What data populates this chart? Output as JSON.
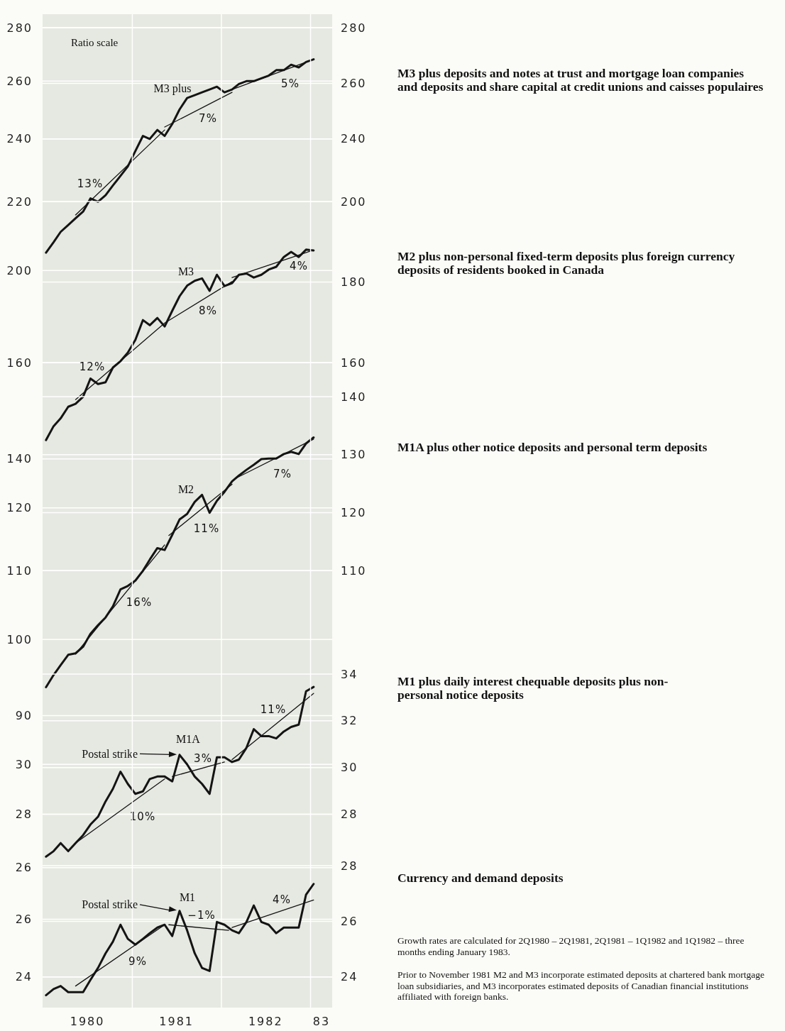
{
  "chart_data": [
    {
      "type": "line",
      "log": true,
      "grid": true,
      "tick_labels": "y",
      "x": [
        "1980-01-15",
        "1980-02-15",
        "1980-03-15",
        "1980-04-15",
        "1980-05-15",
        "1980-06-15",
        "1980-07-15",
        "1980-08-15",
        "1980-09-15",
        "1980-10-15",
        "1980-11-15",
        "1980-12-15",
        "1981-01-15",
        "1981-02-15",
        "1981-03-15",
        "1981-04-15",
        "1981-05-15",
        "1981-06-15",
        "1981-07-15",
        "1981-08-15",
        "1981-09-15",
        "1981-10-15",
        "1981-11-15",
        "1981-12-15",
        "1982-01-15",
        "1982-02-15",
        "1982-03-15",
        "1982-04-15",
        "1982-05-15",
        "1982-06-15",
        "1982-07-15",
        "1982-08-15",
        "1982-09-15",
        "1982-10-15",
        "1982-11-15",
        "1982-12-15",
        "1983-01-15"
      ],
      "xlim": [
        "1980-01-01",
        "1983-04-01"
      ],
      "ylim": [
        200,
        280
      ],
      "yticks": [
        200,
        220,
        240,
        260,
        280
      ],
      "y2lim": [
        240,
        280
      ],
      "y2ticks": [
        240,
        260,
        280
      ],
      "series": [
        {
          "color": "#141414",
          "values": [
            205,
            208,
            211,
            213,
            215,
            217,
            221,
            220,
            222,
            225,
            228,
            231,
            236,
            241,
            240,
            243,
            241,
            245,
            250,
            254,
            255,
            256,
            257,
            258,
            256,
            257,
            259,
            260,
            260,
            261,
            262,
            264,
            264,
            266,
            265,
            267,
            268
          ]
        },
        {
          "type": "line",
          "color": "#141414",
          "x": [
            "1980-05-15",
            "1981-05-15"
          ],
          "values": [
            216,
            243
          ]
        },
        {
          "type": "line",
          "color": "#141414",
          "x": [
            "1981-05-15",
            "1982-02-15"
          ],
          "values": [
            244,
            256
          ]
        },
        {
          "type": "line",
          "color": "#141414",
          "x": [
            "1982-02-15",
            "1983-01-15"
          ],
          "values": [
            257,
            268
          ]
        }
      ],
      "annotations": [
        "Ratio scale",
        "M3 plus deposits and notes at trust and mortgage loan companies and deposits and share capital at credit unions and caisses populaires",
        "M3 plus",
        "13%",
        "7%",
        "5%"
      ]
    },
    {
      "type": "line",
      "log": true,
      "grid": true,
      "tick_labels": "y",
      "x": [
        "1980-01-15",
        "1980-02-15",
        "1980-03-15",
        "1980-04-15",
        "1980-05-15",
        "1980-06-15",
        "1980-07-15",
        "1980-08-15",
        "1980-09-15",
        "1980-10-15",
        "1980-11-15",
        "1980-12-15",
        "1981-01-15",
        "1981-02-15",
        "1981-03-15",
        "1981-04-15",
        "1981-05-15",
        "1981-06-15",
        "1981-07-15",
        "1981-08-15",
        "1981-09-15",
        "1981-10-15",
        "1981-11-15",
        "1981-12-15",
        "1982-01-15",
        "1982-02-15",
        "1982-03-15",
        "1982-04-15",
        "1982-05-15",
        "1982-06-15",
        "1982-07-15",
        "1982-08-15",
        "1982-09-15",
        "1982-10-15",
        "1982-11-15",
        "1982-12-15",
        "1983-01-15"
      ],
      "xlim": [
        "1980-01-01",
        "1983-04-01"
      ],
      "ylim": [
        140,
        200
      ],
      "yticks": [
        140,
        160
      ],
      "y2lim": [
        160,
        200
      ],
      "y2ticks": [
        160,
        180,
        200
      ],
      "series": [
        {
          "color": "#141414",
          "values": [
            143.7,
            146.5,
            148.1,
            150.5,
            151.1,
            152.6,
            156.5,
            155.3,
            155.7,
            158.9,
            160.3,
            162.2,
            165.1,
            169.7,
            168.5,
            170.2,
            168.2,
            171.9,
            175.4,
            178.0,
            179.2,
            179.8,
            176.7,
            180.7,
            177.9,
            178.6,
            180.7,
            181.0,
            180.0,
            180.7,
            182.0,
            182.7,
            185.2,
            186.5,
            185.2,
            187.1,
            186.9
          ]
        },
        {
          "type": "line",
          "color": "#141414",
          "x": [
            "1980-05-15",
            "1981-05-15",
            "1982-02-15"
          ],
          "values": [
            152,
            169,
            179
          ]
        },
        {
          "type": "line",
          "color": "#141414",
          "x": [
            "1982-02-15",
            "1983-01-15"
          ],
          "values": [
            180,
            187
          ]
        }
      ],
      "annotations": [
        "M2 plus non-personal fixed-term deposits plus foreign currency deposits of residents booked in Canada",
        "M3",
        "12%",
        "8%",
        "4%"
      ]
    },
    {
      "type": "line",
      "log": true,
      "grid": true,
      "tick_labels": "y",
      "x": [
        "1980-01-15",
        "1980-02-15",
        "1980-03-15",
        "1980-04-15",
        "1980-05-15",
        "1980-06-15",
        "1980-07-15",
        "1980-08-15",
        "1980-09-15",
        "1980-10-15",
        "1980-11-15",
        "1980-12-15",
        "1981-01-15",
        "1981-02-15",
        "1981-03-15",
        "1981-04-15",
        "1981-05-15",
        "1981-06-15",
        "1981-07-15",
        "1981-08-15",
        "1981-09-15",
        "1981-10-15",
        "1981-11-15",
        "1981-12-15",
        "1982-01-15",
        "1982-02-15",
        "1982-03-15",
        "1982-04-15",
        "1982-05-15",
        "1982-06-15",
        "1982-07-15",
        "1982-08-15",
        "1982-09-15",
        "1982-10-15",
        "1982-11-15",
        "1982-12-15",
        "1983-01-15"
      ],
      "xlim": [
        "1980-01-01",
        "1983-04-01"
      ],
      "ylim": [
        90,
        140
      ],
      "yticks": [
        90,
        100,
        110,
        120
      ],
      "y2lim": [
        110,
        140
      ],
      "y2ticks": [
        110,
        120,
        130,
        140
      ],
      "series": [
        {
          "color": "#141414",
          "values": [
            93.6,
            95.2,
            96.5,
            97.9,
            98.1,
            99.0,
            100.8,
            102.0,
            103.1,
            104.7,
            107.2,
            107.7,
            108.5,
            110.0,
            111.7,
            113.5,
            113.2,
            115.6,
            118.1,
            119.0,
            121.0,
            122.2,
            119.2,
            121.2,
            122.7,
            124.5,
            125.5,
            126.5,
            127.4,
            128.4,
            128.5,
            128.5,
            129.3,
            129.7,
            129.3,
            131.2,
            132.3
          ]
        },
        {
          "type": "line",
          "color": "#141414",
          "x": [
            "1980-05-15",
            "1981-05-15"
          ],
          "values": [
            98,
            114
          ]
        },
        {
          "type": "line",
          "color": "#141414",
          "x": [
            "1981-06-01",
            "1982-02-15"
          ],
          "values": [
            115.5,
            124
          ]
        },
        {
          "type": "line",
          "color": "#141414",
          "x": [
            "1982-03-01",
            "1983-01-15"
          ],
          "values": [
            125,
            132
          ]
        }
      ],
      "annotations": [
        "M1A plus other notice deposits and personal term deposits",
        "M2",
        "16%",
        "11%",
        "7%"
      ]
    },
    {
      "type": "line",
      "log": true,
      "grid": true,
      "tick_labels": "y",
      "x": [
        "1980-01-15",
        "1980-02-15",
        "1980-03-15",
        "1980-04-15",
        "1980-05-15",
        "1980-06-15",
        "1980-07-15",
        "1980-08-15",
        "1980-09-15",
        "1980-10-15",
        "1980-11-15",
        "1980-12-15",
        "1981-01-15",
        "1981-02-15",
        "1981-03-15",
        "1981-04-15",
        "1981-05-15",
        "1981-06-15",
        "1981-07-15",
        "1981-08-15",
        "1981-09-15",
        "1981-10-15",
        "1981-11-15",
        "1981-12-15",
        "1982-01-15",
        "1982-02-15",
        "1982-03-15",
        "1982-04-15",
        "1982-05-15",
        "1982-06-15",
        "1982-07-15",
        "1982-08-15",
        "1982-09-15",
        "1982-10-15",
        "1982-11-15",
        "1982-12-15",
        "1983-01-15"
      ],
      "xlim": [
        "1980-01-01",
        "1983-04-01"
      ],
      "ylim": [
        26,
        34
      ],
      "yticks": [
        26,
        28,
        30
      ],
      "y2lim": [
        28,
        34
      ],
      "y2ticks": [
        28,
        30,
        32,
        34
      ],
      "series": [
        {
          "color": "#141414",
          "values": [
            26.4,
            26.6,
            26.9,
            26.6,
            26.9,
            27.2,
            27.6,
            27.9,
            28.5,
            29.0,
            29.7,
            29.2,
            28.8,
            28.9,
            29.4,
            29.5,
            29.5,
            29.3,
            30.4,
            30.0,
            29.5,
            29.2,
            28.8,
            30.3,
            30.3,
            30.1,
            30.2,
            30.7,
            31.5,
            31.2,
            31.2,
            31.1,
            31.4,
            31.6,
            31.7,
            33.2,
            33.4
          ]
        },
        {
          "type": "line",
          "color": "#141414",
          "x": [
            "1980-05-15",
            "1981-05-15"
          ],
          "values": [
            26.9,
            29.4
          ]
        },
        {
          "type": "line",
          "color": "#141414",
          "x": [
            "1981-06-15",
            "1982-01-15"
          ],
          "values": [
            29.5,
            30.1
          ]
        },
        {
          "type": "line",
          "color": "#141414",
          "x": [
            "1982-02-15",
            "1983-01-15"
          ],
          "values": [
            30.2,
            33.1
          ]
        }
      ],
      "annotations": [
        "M1 plus daily interest chequable deposits plus non-personal notice deposits",
        "M1A",
        "10%",
        "3%",
        "11%",
        "Postal strike"
      ]
    },
    {
      "type": "line",
      "log": true,
      "grid": true,
      "x": [
        "1980-01-15",
        "1980-02-15",
        "1980-03-15",
        "1980-04-15",
        "1980-05-15",
        "1980-06-15",
        "1980-07-15",
        "1980-08-15",
        "1980-09-15",
        "1980-10-15",
        "1980-11-15",
        "1980-12-15",
        "1981-01-15",
        "1981-02-15",
        "1981-03-15",
        "1981-04-15",
        "1981-05-15",
        "1981-06-15",
        "1981-07-15",
        "1981-08-15",
        "1981-09-15",
        "1981-10-15",
        "1981-11-15",
        "1981-12-15",
        "1982-01-15",
        "1982-02-15",
        "1982-03-15",
        "1982-04-15",
        "1982-05-15",
        "1982-06-15",
        "1982-07-15",
        "1982-08-15",
        "1982-09-15",
        "1982-10-15",
        "1982-11-15",
        "1982-12-15",
        "1983-01-15"
      ],
      "xlim": [
        "1980-01-01",
        "1983-04-01"
      ],
      "xticks": [
        {
          "value": "1980-07-01",
          "label": "1980"
        },
        {
          "value": "1981-01-01",
          "label": null
        },
        {
          "value": "1981-07-01",
          "label": "1981"
        },
        {
          "value": "1982-01-01",
          "label": null
        },
        {
          "value": "1982-07-01",
          "label": "1982"
        },
        {
          "value": "1983-01-01",
          "label": null
        },
        {
          "value": "1983-02-15",
          "label": "83"
        }
      ],
      "ylim": [
        23,
        28
      ],
      "yticks": [
        24,
        26
      ],
      "y2lim": [
        24,
        28
      ],
      "y2ticks": [
        24,
        26,
        28
      ],
      "series": [
        {
          "color": "#141414",
          "values": [
            23.4,
            23.6,
            23.7,
            23.5,
            23.5,
            23.5,
            23.9,
            24.3,
            24.8,
            25.2,
            25.8,
            25.3,
            25.1,
            25.3,
            25.5,
            25.7,
            25.8,
            25.4,
            26.3,
            25.6,
            24.8,
            24.3,
            24.2,
            25.9,
            25.8,
            25.6,
            25.5,
            25.9,
            26.5,
            25.9,
            25.8,
            25.5,
            25.7,
            25.7,
            25.7,
            26.9,
            27.3
          ]
        },
        {
          "type": "line",
          "color": "#141414",
          "x": [
            "1980-05-15",
            "1981-05-15"
          ],
          "values": [
            23.7,
            25.8
          ]
        },
        {
          "type": "line",
          "color": "#141414",
          "x": [
            "1981-06-01",
            "1982-02-01"
          ],
          "values": [
            25.8,
            25.6
          ]
        },
        {
          "type": "line",
          "color": "#141414",
          "x": [
            "1982-02-15",
            "1983-01-15"
          ],
          "values": [
            25.7,
            26.7
          ]
        }
      ],
      "annotations": [
        "Currency and demand deposits",
        "Growth rates are calculated for 2Q1980 – 2Q1981, 2Q1981 – 1Q1982 and 1Q1982 – three months ending January 1983.",
        "Prior to November 1981 M2 and M3 incorporate estimated deposits at chartered bank mortgage loan subsidiaries, and M3 incorporates estimated deposits of Canadian financial institutions affiliated with foreign banks.",
        "M1",
        "9%",
        "−1%",
        "4%",
        "Postal strike"
      ]
    }
  ]
}
